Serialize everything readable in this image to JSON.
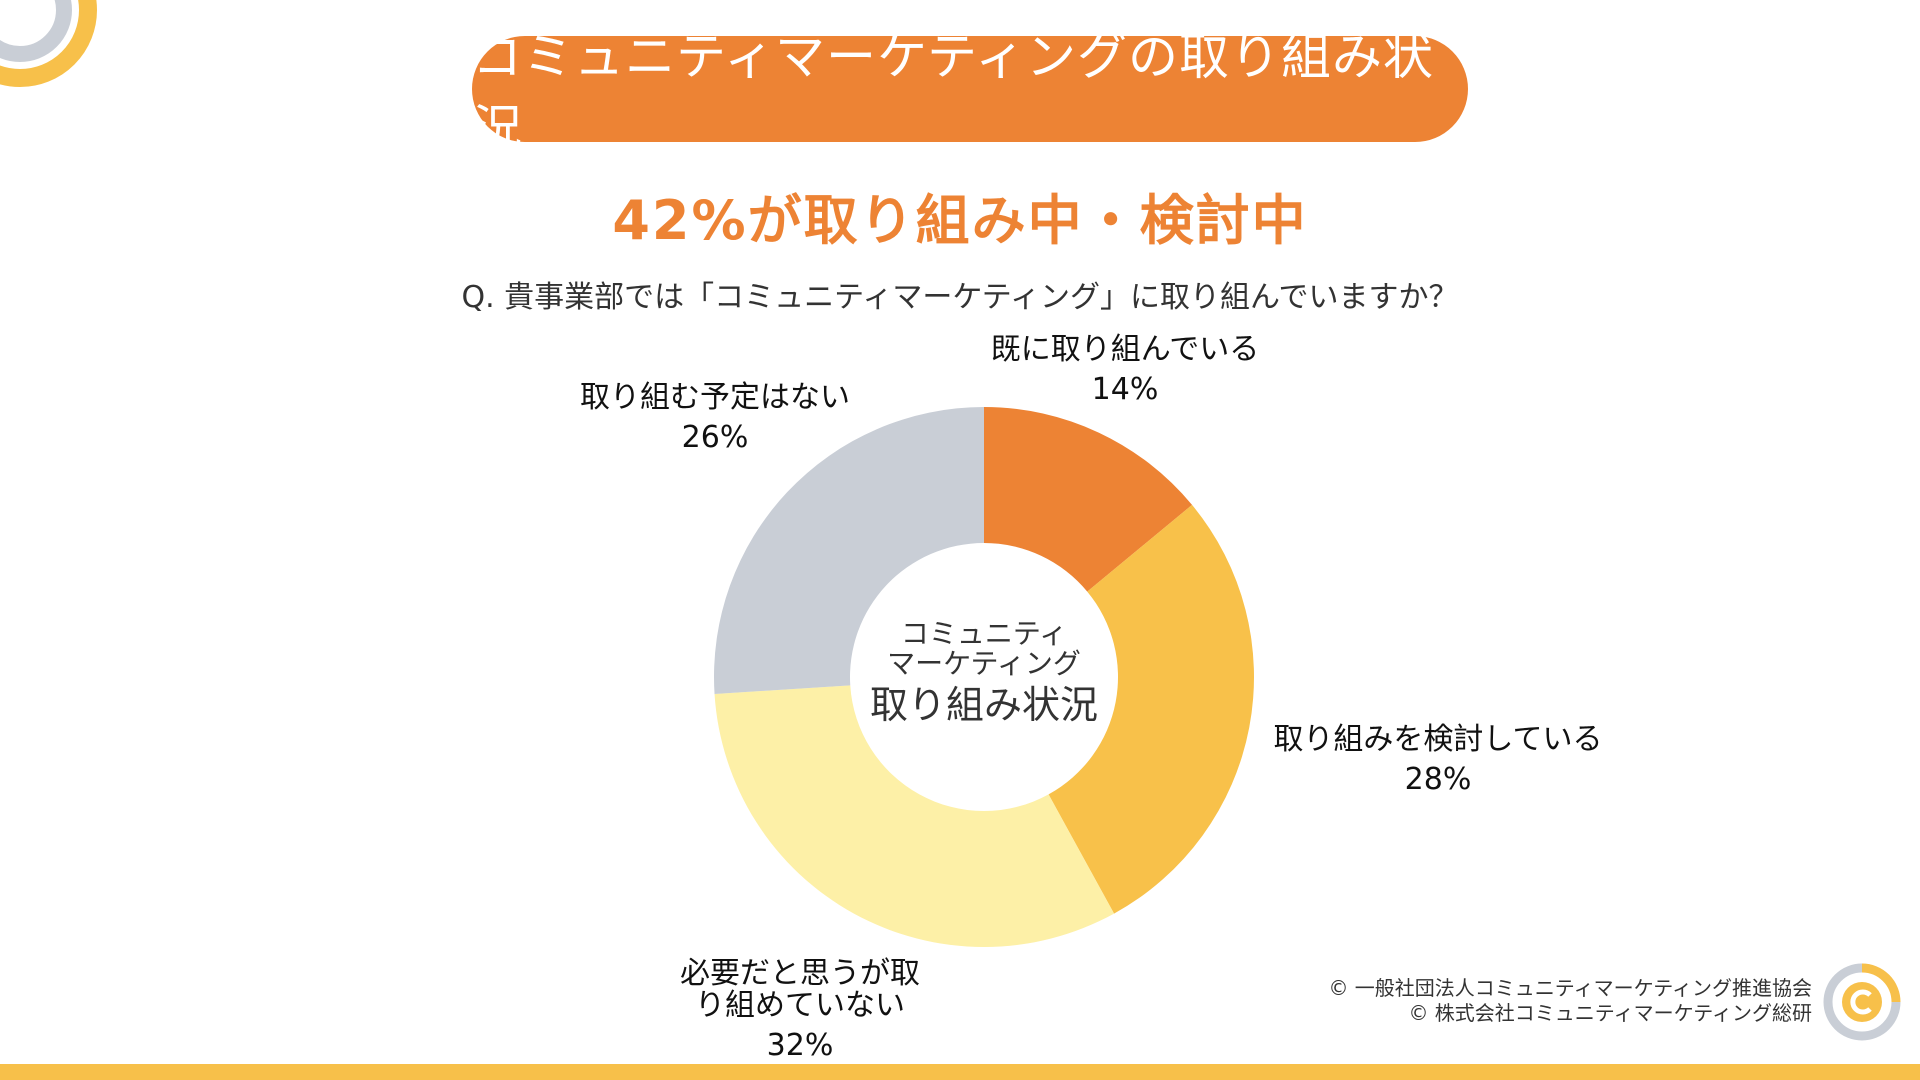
{
  "header": {
    "title": "コミュニティマーケティングの取り組み状況",
    "headline": "42%が取り組み中・検討中",
    "question": "Q. 貴事業部では「コミュニティマーケティング」に取り組んでいますか？"
  },
  "center": {
    "line1": "コミュニティ",
    "line2": "マーケティング",
    "line3": "取り組み状況"
  },
  "chart_data": {
    "type": "pie",
    "style": "donut",
    "title": "コミュニティマーケティングの取り組み状況",
    "categories": [
      "既に取り組んでいる",
      "取り組みを検討している",
      "必要だと思うが取り組めていない",
      "取り組む予定はない"
    ],
    "values": [
      14,
      28,
      32,
      26
    ],
    "unit": "%",
    "colors": [
      "#ed8334",
      "#f8c14a",
      "#fdf0a7",
      "#c9ced6"
    ],
    "labels": [
      {
        "name": "既に取り組んでいる",
        "pct": "14%"
      },
      {
        "name": "取り組みを検討している",
        "pct": "28%"
      },
      {
        "name_lines": [
          "必要だと思うが取",
          "り組めていない"
        ],
        "pct": "32%"
      },
      {
        "name": "取り組む予定はない",
        "pct": "26%"
      }
    ]
  },
  "footer": {
    "copyright_1": "© 一般社団法人コミュニティマーケティング推進協会",
    "copyright_2": "© 株式会社コミュニティマーケティング総研"
  },
  "colors": {
    "accent": "#ed8334",
    "yellow": "#f7c04a",
    "gray": "#c9ced6"
  }
}
